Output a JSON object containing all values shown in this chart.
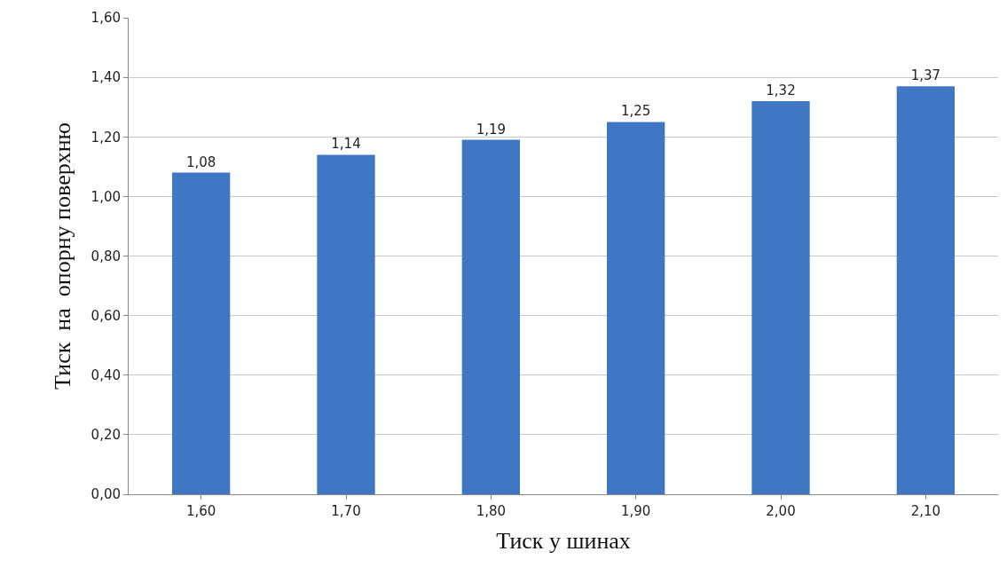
{
  "chart_data": {
    "type": "bar",
    "xlabel": "Тиск у шинах",
    "ylabel": "Тиск  на  опорну поверхню",
    "categories": [
      "1,60",
      "1,70",
      "1,80",
      "1,90",
      "2,00",
      "2,10"
    ],
    "values": [
      1.08,
      1.14,
      1.19,
      1.25,
      1.32,
      1.37
    ],
    "value_labels": [
      "1,08",
      "1,14",
      "1,19",
      "1,25",
      "1,32",
      "1,37"
    ],
    "color": "#3f77c4",
    "ylim": [
      0,
      1.6
    ],
    "yticks": [
      {
        "value": 0,
        "label": "0,00"
      },
      {
        "value": 0.2,
        "label": "0,20"
      },
      {
        "value": 0.4,
        "label": "0,40"
      },
      {
        "value": 0.6,
        "label": "0,60"
      },
      {
        "value": 0.8,
        "label": "0,80"
      },
      {
        "value": 1.0,
        "label": "1,00"
      },
      {
        "value": 1.2,
        "label": "1,20"
      },
      {
        "value": 1.4,
        "label": "1,40"
      },
      {
        "value": 1.6,
        "label": "1,60"
      }
    ],
    "grid": "y"
  }
}
